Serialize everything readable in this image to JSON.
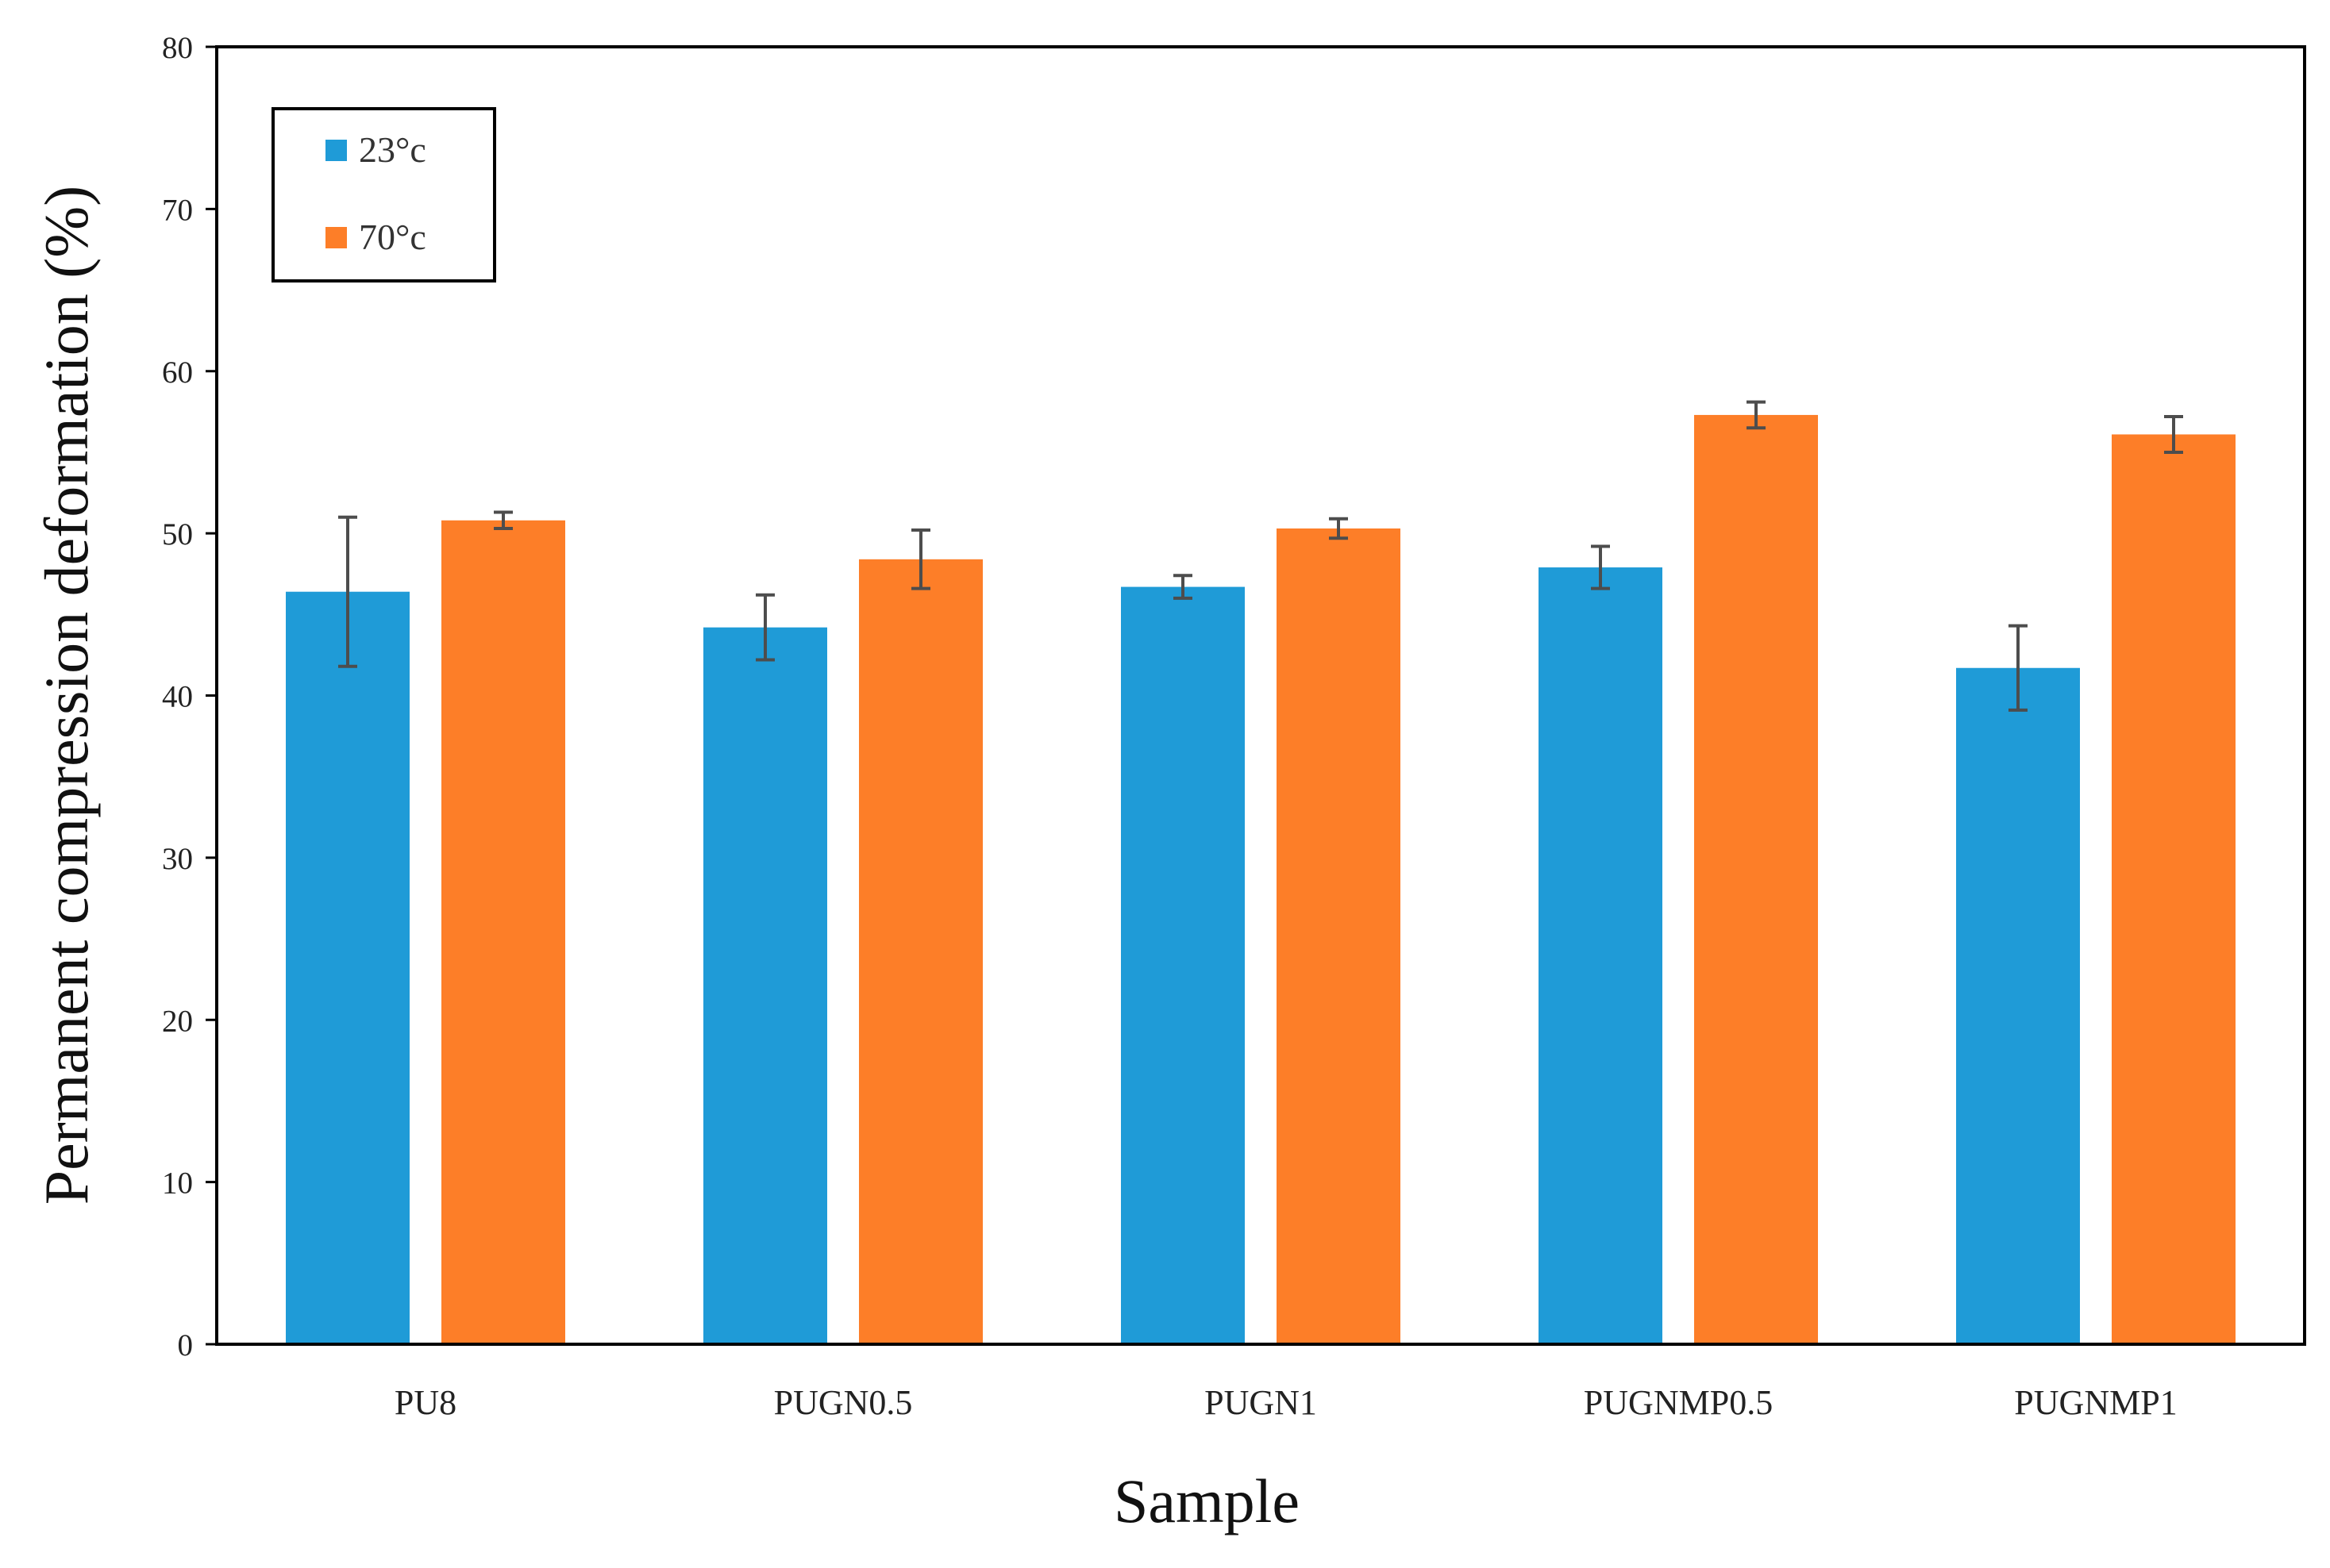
{
  "chart_data": {
    "type": "bar",
    "title": "",
    "xlabel": "Sample",
    "ylabel": "Permanent compression deformation (%)",
    "ylim": [
      0,
      80
    ],
    "yticks": [
      0,
      10,
      20,
      30,
      40,
      50,
      60,
      70,
      80
    ],
    "categories": [
      "PU8",
      "PUGN0.5",
      "PUGN1",
      "PUGNMP0.5",
      "PUGNMP1"
    ],
    "legend_position": "top-left",
    "series": [
      {
        "name": "23°c",
        "color": "#1f9bd7",
        "values": [
          46.4,
          44.2,
          46.7,
          47.9,
          41.7
        ],
        "errors": [
          4.6,
          2.0,
          0.7,
          1.3,
          2.6
        ]
      },
      {
        "name": "70°c",
        "color": "#fd7e28",
        "values": [
          50.8,
          48.4,
          50.3,
          57.3,
          56.1
        ],
        "errors": [
          0.5,
          1.8,
          0.6,
          0.8,
          1.1
        ]
      }
    ]
  }
}
